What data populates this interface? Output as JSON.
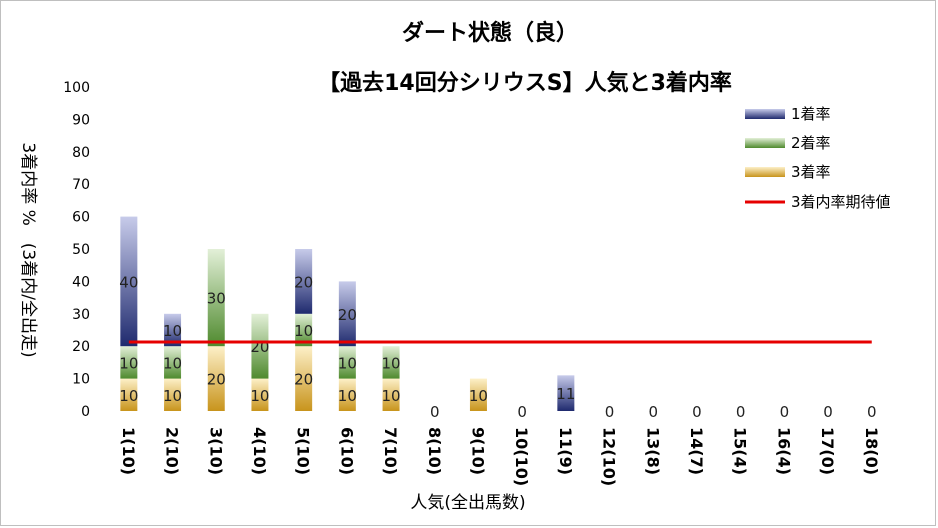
{
  "chart_data": {
    "type": "bar",
    "stacked": true,
    "title": "ダート状態（良）",
    "subtitle": "【過去14回分シリウスS】人気と3着内率",
    "xlabel": "人気(全出馬数)",
    "ylabel": "3着内率 %　(3着内/全出走)",
    "ylim": [
      0,
      100
    ],
    "yticks": [
      0,
      10,
      20,
      30,
      40,
      50,
      60,
      70,
      80,
      90,
      100
    ],
    "grid": false,
    "legend_position": "top-right",
    "categories": [
      "1(10)",
      "2(10)",
      "3(10)",
      "4(10)",
      "5(10)",
      "6(10)",
      "7(10)",
      "8(10)",
      "9(10)",
      "10(10)",
      "11(9)",
      "12(10)",
      "13(8)",
      "14(7)",
      "15(4)",
      "16(4)",
      "17(0)",
      "18(0)"
    ],
    "series": [
      {
        "name": "3着率",
        "color": "#e6b94f",
        "values": [
          10,
          10,
          20,
          10,
          20,
          10,
          10,
          0,
          10,
          0,
          0,
          0,
          0,
          0,
          0,
          0,
          0,
          0
        ]
      },
      {
        "name": "2着率",
        "color": "#6aa84f",
        "values": [
          10,
          10,
          30,
          20,
          10,
          10,
          10,
          0,
          0,
          0,
          0,
          0,
          0,
          0,
          0,
          0,
          0,
          0
        ]
      },
      {
        "name": "1着率",
        "color": "#3c4a9e",
        "values": [
          40,
          10,
          0,
          0,
          20,
          20,
          0,
          0,
          0,
          0,
          11,
          0,
          0,
          0,
          0,
          0,
          0,
          0
        ]
      }
    ],
    "expected_line": {
      "name": "3着内率期待値",
      "color": "#e60000",
      "value": 21.3
    }
  }
}
